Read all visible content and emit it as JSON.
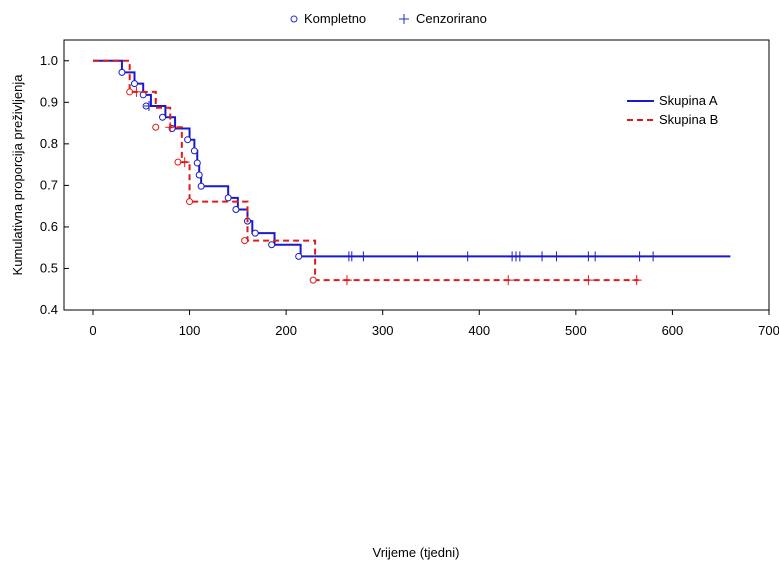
{
  "chart_data": {
    "type": "line",
    "title": "",
    "xlabel": "Vrijeme (tjedni)",
    "ylabel": "Kumulativna proporcija preživljenja",
    "xlim": [
      -30,
      700
    ],
    "ylim": [
      0.4,
      1.05
    ],
    "x_ticks": [
      0,
      100,
      200,
      300,
      400,
      500,
      600,
      700
    ],
    "y_ticks": [
      0.4,
      0.5,
      0.6,
      0.7,
      0.8,
      0.9,
      1.0
    ],
    "x_tick_labels": [
      "0",
      "100",
      "200",
      "300",
      "400",
      "500",
      "600",
      "700"
    ],
    "y_tick_labels": [
      "0.4",
      "0.5",
      "0.6",
      "0.7",
      "0.8",
      "0.9",
      "1.0"
    ],
    "grid": false,
    "marker_legend": {
      "placement": "top-center",
      "entries": [
        {
          "label": "Kompletno",
          "marker": "circle"
        },
        {
          "label": "Cenzorirano",
          "marker": "plus"
        }
      ]
    },
    "series_legend": {
      "placement": "top-right"
    },
    "series": [
      {
        "name": "Skupina A",
        "color": "#1a1acc",
        "dash": "solid",
        "step_x": [
          0,
          30,
          43,
          52,
          60,
          75,
          85,
          100,
          105,
          108,
          110,
          112,
          140,
          150,
          160,
          165,
          170,
          188,
          215,
          660
        ],
        "step_y": [
          1.0,
          0.972,
          0.945,
          0.918,
          0.891,
          0.864,
          0.837,
          0.81,
          0.783,
          0.756,
          0.727,
          0.698,
          0.67,
          0.642,
          0.614,
          0.585,
          0.585,
          0.557,
          0.529,
          0.529
        ],
        "events": [
          {
            "x": 30,
            "y": 0.972
          },
          {
            "x": 43,
            "y": 0.945
          },
          {
            "x": 52,
            "y": 0.918
          },
          {
            "x": 55,
            "y": 0.891
          },
          {
            "x": 72,
            "y": 0.864
          },
          {
            "x": 82,
            "y": 0.837
          },
          {
            "x": 98,
            "y": 0.81
          },
          {
            "x": 105,
            "y": 0.783
          },
          {
            "x": 108,
            "y": 0.754
          },
          {
            "x": 110,
            "y": 0.725
          },
          {
            "x": 112,
            "y": 0.698
          },
          {
            "x": 140,
            "y": 0.67
          },
          {
            "x": 148,
            "y": 0.642
          },
          {
            "x": 160,
            "y": 0.614
          },
          {
            "x": 168,
            "y": 0.585
          },
          {
            "x": 185,
            "y": 0.557
          },
          {
            "x": 213,
            "y": 0.529
          }
        ],
        "censored": [
          {
            "x": 58,
            "y": 0.891
          },
          {
            "x": 265,
            "y": 0.529
          },
          {
            "x": 268,
            "y": 0.529
          },
          {
            "x": 280,
            "y": 0.529
          },
          {
            "x": 336,
            "y": 0.529
          },
          {
            "x": 388,
            "y": 0.529
          },
          {
            "x": 434,
            "y": 0.529
          },
          {
            "x": 438,
            "y": 0.529
          },
          {
            "x": 442,
            "y": 0.529
          },
          {
            "x": 465,
            "y": 0.529
          },
          {
            "x": 480,
            "y": 0.529
          },
          {
            "x": 513,
            "y": 0.529
          },
          {
            "x": 520,
            "y": 0.529
          },
          {
            "x": 566,
            "y": 0.529
          },
          {
            "x": 580,
            "y": 0.529
          }
        ]
      },
      {
        "name": "Skupina B",
        "color": "#e01a1a",
        "dash": "dashed",
        "step_x": [
          0,
          38,
          65,
          80,
          92,
          100,
          155,
          160,
          230,
          565
        ],
        "step_y": [
          1.0,
          0.925,
          0.887,
          0.84,
          0.756,
          0.661,
          0.661,
          0.567,
          0.472,
          0.472
        ],
        "events": [
          {
            "x": 38,
            "y": 0.925
          },
          {
            "x": 65,
            "y": 0.84
          },
          {
            "x": 88,
            "y": 0.756
          },
          {
            "x": 100,
            "y": 0.661
          },
          {
            "x": 157,
            "y": 0.567
          },
          {
            "x": 228,
            "y": 0.472
          }
        ],
        "censored": [
          {
            "x": 45,
            "y": 0.925
          },
          {
            "x": 80,
            "y": 0.84
          },
          {
            "x": 95,
            "y": 0.756
          },
          {
            "x": 263,
            "y": 0.472
          },
          {
            "x": 430,
            "y": 0.472
          },
          {
            "x": 513,
            "y": 0.472
          },
          {
            "x": 563,
            "y": 0.472
          }
        ]
      }
    ]
  }
}
